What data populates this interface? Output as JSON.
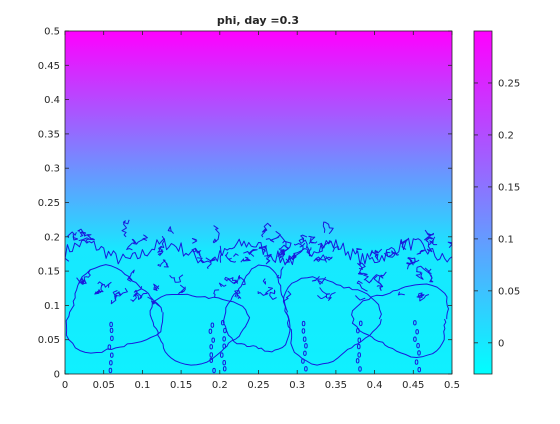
{
  "chart_data": {
    "type": "heatmap",
    "title": "phi, day =0.3",
    "xlabel": "",
    "ylabel": "",
    "xlim": [
      0,
      0.5
    ],
    "ylim": [
      0,
      0.5
    ],
    "x_ticks": [
      "0",
      "0.05",
      "0.1",
      "0.15",
      "0.2",
      "0.25",
      "0.3",
      "0.35",
      "0.4",
      "0.45",
      "0.5"
    ],
    "y_ticks": [
      "0",
      "0.05",
      "0.1",
      "0.15",
      "0.2",
      "0.25",
      "0.3",
      "0.35",
      "0.4",
      "0.45",
      "0.5"
    ],
    "colorbar": {
      "range": [
        -0.03,
        0.3
      ],
      "ticks": [
        "0",
        "0.05",
        "0.1",
        "0.15",
        "0.2",
        "0.25"
      ],
      "tick_values": [
        0,
        0.05,
        0.1,
        0.15,
        0.2,
        0.25
      ],
      "colormap": "cool",
      "low_color": "#00ffff",
      "high_color": "#ff00ff"
    },
    "field_description": "phi increases linearly with y from about 0 near y=0.18 to about 0.3 at y=0.5; below y~0.18 phi is near 0 (cyan)",
    "field_profile": [
      {
        "y": 0.0,
        "value": -0.01
      },
      {
        "y": 0.18,
        "value": 0.0
      },
      {
        "y": 0.5,
        "value": 0.3
      }
    ],
    "contour_color": "#1a1adc",
    "contour_level_approx": 0.0
  }
}
